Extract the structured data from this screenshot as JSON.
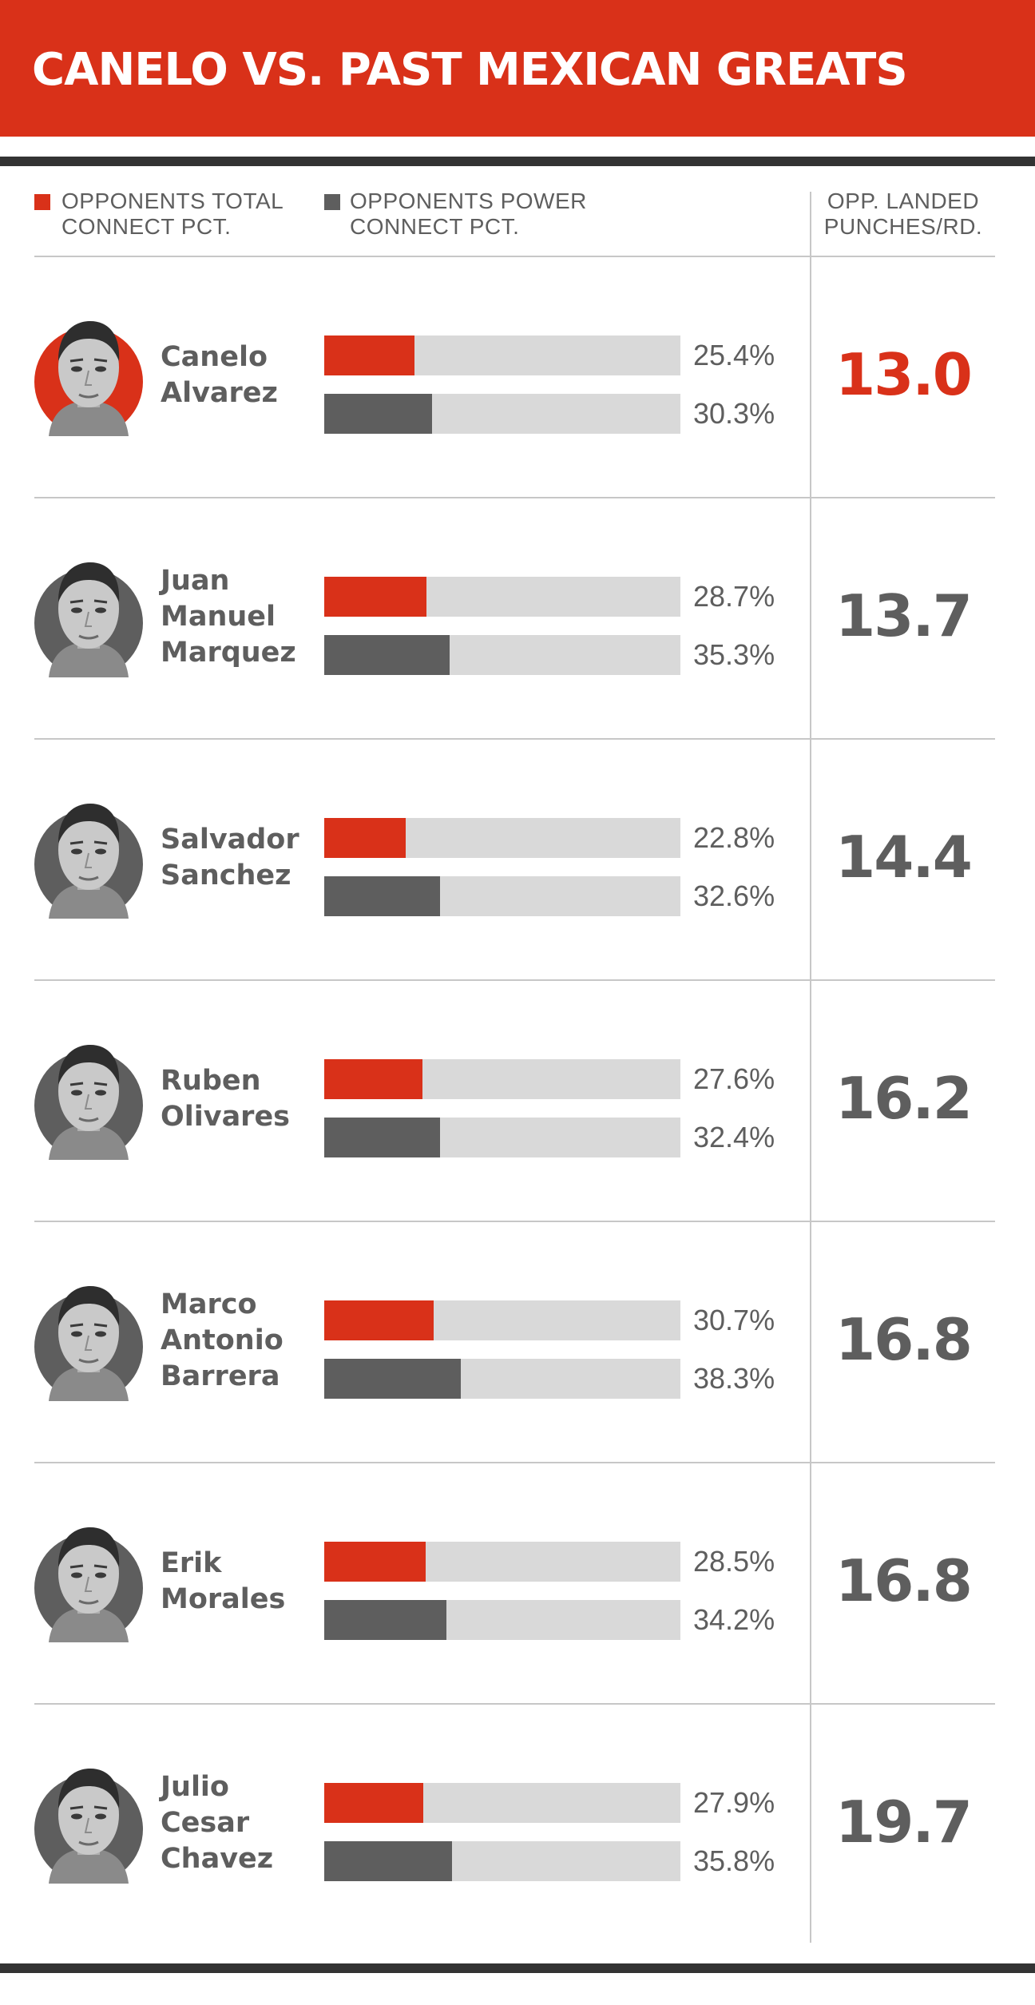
{
  "title": "CANELO VS. PAST MEXICAN GREATS",
  "colors": {
    "accent": "#d93119",
    "power": "#5e5e5e",
    "track": "#d9d9d9",
    "text": "#5e5e5e"
  },
  "legend": {
    "total": {
      "label": "OPPONENTS TOTAL\nCONNECT PCT.",
      "color": "#d93119"
    },
    "power": {
      "label": "OPPONENTS POWER\nCONNECT PCT.",
      "color": "#5e5e5e"
    },
    "landed_header": "OPP. LANDED\nPUNCHES/RD."
  },
  "chart_data": {
    "type": "bar",
    "title": "CANELO VS. PAST MEXICAN GREATS",
    "categories": [
      "Canelo Alvarez",
      "Juan Manuel Marquez",
      "Salvador Sanchez",
      "Ruben Olivares",
      "Marco Antonio Barrera",
      "Erik Morales",
      "Julio Cesar Chavez"
    ],
    "series": [
      {
        "name": "OPPONENTS TOTAL CONNECT PCT.",
        "values": [
          25.4,
          28.7,
          22.8,
          27.6,
          30.7,
          28.5,
          27.9
        ]
      },
      {
        "name": "OPPONENTS POWER CONNECT PCT.",
        "values": [
          30.3,
          35.3,
          32.6,
          32.4,
          38.3,
          34.2,
          35.8
        ]
      }
    ],
    "landed_per_round": [
      13.0,
      13.7,
      14.4,
      16.2,
      16.8,
      16.8,
      19.7
    ],
    "xlim": [
      0,
      100
    ],
    "grid": false,
    "legend_position": "top"
  },
  "rows": [
    {
      "name": "Canelo\nAlvarez",
      "total_label": "25.4%",
      "power_label": "30.3%",
      "landed_label": "13.0",
      "highlight": true,
      "avatar_icon": "boxer-portrait-icon"
    },
    {
      "name": "Juan\nManuel\nMarquez",
      "total_label": "28.7%",
      "power_label": "35.3%",
      "landed_label": "13.7",
      "highlight": false,
      "avatar_icon": "boxer-portrait-icon"
    },
    {
      "name": "Salvador\nSanchez",
      "total_label": "22.8%",
      "power_label": "32.6%",
      "landed_label": "14.4",
      "highlight": false,
      "avatar_icon": "boxer-portrait-icon"
    },
    {
      "name": "Ruben\nOlivares",
      "total_label": "27.6%",
      "power_label": "32.4%",
      "landed_label": "16.2",
      "highlight": false,
      "avatar_icon": "boxer-portrait-icon"
    },
    {
      "name": "Marco\nAntonio\nBarrera",
      "total_label": "30.7%",
      "power_label": "38.3%",
      "landed_label": "16.8",
      "highlight": false,
      "avatar_icon": "boxer-portrait-icon"
    },
    {
      "name": "Erik\nMorales",
      "total_label": "28.5%",
      "power_label": "34.2%",
      "landed_label": "16.8",
      "highlight": false,
      "avatar_icon": "boxer-portrait-icon"
    },
    {
      "name": "Julio\nCesar\nChavez",
      "total_label": "27.9%",
      "power_label": "35.8%",
      "landed_label": "19.7",
      "highlight": false,
      "avatar_icon": "boxer-portrait-icon"
    }
  ]
}
